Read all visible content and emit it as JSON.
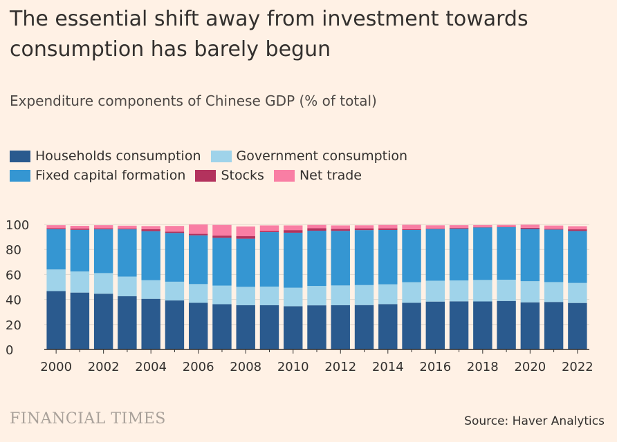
{
  "title": "The essential shift away from investment towards consumption has barely begun",
  "subtitle": "Expenditure components of Chinese GDP (% of total)",
  "source": "Source: Haver Analytics",
  "brand": "FINANCIAL TIMES",
  "colors": {
    "households": "#2a5a8e",
    "government": "#9fd3ea",
    "fixed": "#3596d2",
    "stocks": "#b3325d",
    "net_trade": "#f97ea4",
    "background": "#fff1e5"
  },
  "chart_data": {
    "type": "bar",
    "stacked": true,
    "title": "Expenditure components of Chinese GDP (% of total)",
    "categories": [
      "2000",
      "2001",
      "2002",
      "2003",
      "2004",
      "2005",
      "2006",
      "2007",
      "2008",
      "2009",
      "2010",
      "2011",
      "2012",
      "2013",
      "2014",
      "2015",
      "2016",
      "2017",
      "2018",
      "2019",
      "2020",
      "2021",
      "2022"
    ],
    "x_tick_labels": [
      "2000",
      "2002",
      "2004",
      "2006",
      "2008",
      "2010",
      "2012",
      "2014",
      "2016",
      "2018",
      "2020",
      "2022"
    ],
    "y_ticks": [
      "0",
      "20",
      "40",
      "60",
      "80",
      "100"
    ],
    "ylim": [
      0,
      100
    ],
    "legend_placement": "top-left",
    "series": [
      {
        "name": "Households consumption",
        "color": "#2a5a8e",
        "values": [
          46.7,
          45.5,
          44.6,
          42.6,
          40.5,
          39.2,
          37.3,
          36.2,
          35.4,
          35.4,
          34.6,
          35.3,
          35.4,
          35.5,
          36.3,
          37.3,
          38.3,
          38.5,
          38.4,
          38.8,
          37.7,
          38.0,
          37.2
        ]
      },
      {
        "name": "Government consumption",
        "color": "#9fd3ea",
        "values": [
          17.3,
          16.9,
          16.5,
          15.7,
          14.9,
          15.0,
          15.0,
          14.9,
          14.7,
          14.9,
          14.8,
          15.5,
          15.8,
          16.0,
          15.8,
          16.5,
          16.7,
          16.7,
          17.2,
          17.0,
          16.9,
          15.9,
          16.0
        ]
      },
      {
        "name": "Fixed capital formation",
        "color": "#3596d2",
        "values": [
          32.2,
          33.3,
          35.0,
          37.8,
          39.2,
          39.0,
          39.0,
          38.2,
          38.5,
          43.6,
          44.0,
          44.2,
          43.7,
          44.0,
          43.5,
          41.8,
          41.3,
          41.4,
          42.0,
          42.0,
          41.8,
          42.0,
          41.6
        ]
      },
      {
        "name": "Stocks",
        "color": "#b3325d",
        "values": [
          0.8,
          1.0,
          0.8,
          0.7,
          1.6,
          1.1,
          1.2,
          1.8,
          2.0,
          0.9,
          2.1,
          2.0,
          1.6,
          1.4,
          1.3,
          0.6,
          0.5,
          0.6,
          0.2,
          0.3,
          0.9,
          0.6,
          1.3
        ]
      },
      {
        "name": "Net trade",
        "color": "#f97ea4",
        "values": [
          2.4,
          2.2,
          2.5,
          2.2,
          2.5,
          4.5,
          7.5,
          8.5,
          7.8,
          4.4,
          3.7,
          2.6,
          2.7,
          2.4,
          2.7,
          3.5,
          2.5,
          2.2,
          1.7,
          1.5,
          2.5,
          2.6,
          2.5
        ]
      }
    ]
  }
}
